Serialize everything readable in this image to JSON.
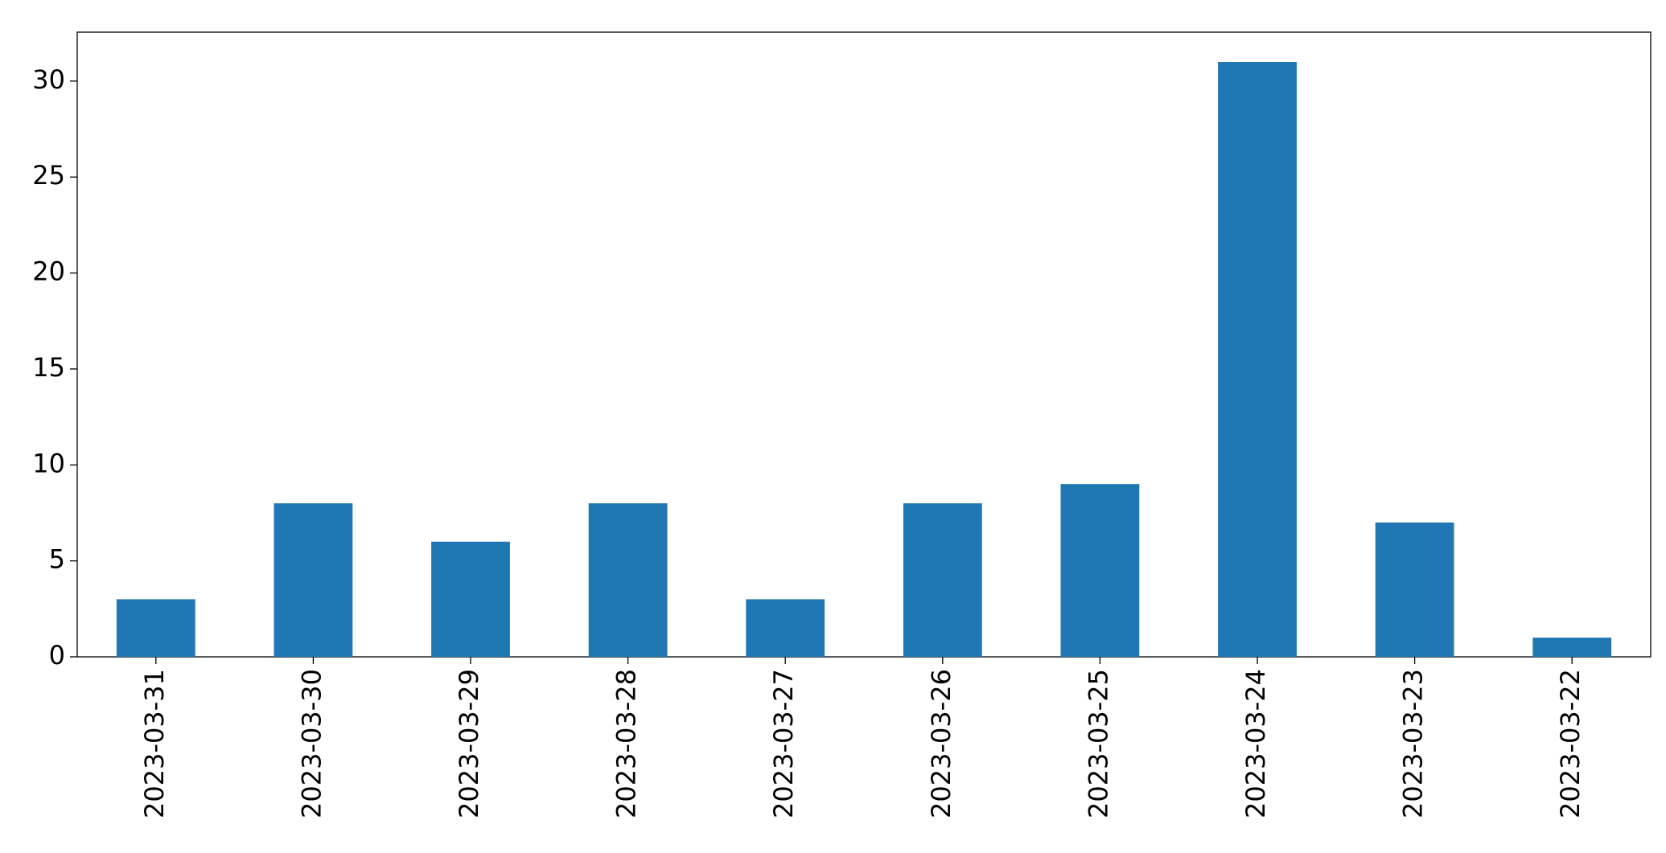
{
  "chart_data": {
    "type": "bar",
    "categories": [
      "2023-03-31",
      "2023-03-30",
      "2023-03-29",
      "2023-03-28",
      "2023-03-27",
      "2023-03-26",
      "2023-03-25",
      "2023-03-24",
      "2023-03-23",
      "2023-03-22"
    ],
    "values": [
      3,
      8,
      6,
      8,
      3,
      8,
      9,
      31,
      7,
      1
    ],
    "color": "#1f77b4",
    "ylim": [
      0,
      32.55
    ],
    "yticks": [
      0,
      5,
      10,
      15,
      20,
      25,
      30
    ],
    "grid": false
  }
}
